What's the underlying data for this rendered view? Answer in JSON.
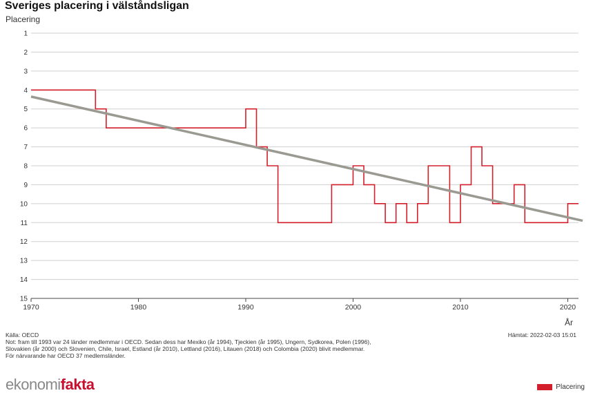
{
  "chart_data": {
    "type": "line",
    "title": "Sveriges placering i välståndsligan",
    "ylabel": "Placering",
    "xlabel": "År",
    "xlim": [
      1970,
      2021
    ],
    "ylim": [
      1,
      15
    ],
    "y_inverted": true,
    "x_ticks": [
      1970,
      1980,
      1990,
      2000,
      2010,
      2020
    ],
    "y_ticks": [
      1,
      2,
      3,
      4,
      5,
      6,
      7,
      8,
      9,
      10,
      11,
      12,
      13,
      14,
      15
    ],
    "grid": "horizontal",
    "legend_position": "bottom-right",
    "series": [
      {
        "name": "Placering",
        "color": "#d21f2b",
        "step": true,
        "x": [
          1970,
          1976,
          1977,
          1990,
          1991,
          1992,
          1993,
          1998,
          2000,
          2001,
          2002,
          2003,
          2004,
          2005,
          2006,
          2007,
          2009,
          2010,
          2011,
          2012,
          2013,
          2015,
          2016,
          2020
        ],
        "y": [
          4,
          5,
          6,
          5,
          7,
          8,
          11,
          9,
          8,
          9,
          10,
          11,
          10,
          11,
          10,
          8,
          11,
          9,
          7,
          8,
          10,
          9,
          11,
          10
        ]
      },
      {
        "color": "#9a9a92",
        "trend": true,
        "x": [
          1970,
          2021
        ],
        "y": [
          4.35,
          10.85
        ]
      }
    ]
  },
  "source_lines": [
    "Källa: OECD",
    "Not: fram till 1993 var 24 länder medlemmar i OECD. Sedan dess har Mexiko (år 1994), Tjeckien (år 1995), Ungern, Sydkorea, Polen (1996),",
    "Slovakien (år 2000) och Slovenien, Chile, Israel, Estland (år 2010), Lettland (2016), Litauen (2018) och Colombia (2020) blivit medlemmar.",
    "För närvarande har OECD 37 medlemsländer."
  ],
  "fetched": "Hämtat: 2022-02-03 15:01",
  "logo": {
    "part1": "ekonomi",
    "part2": "fakta"
  },
  "legend_label": "Placering"
}
